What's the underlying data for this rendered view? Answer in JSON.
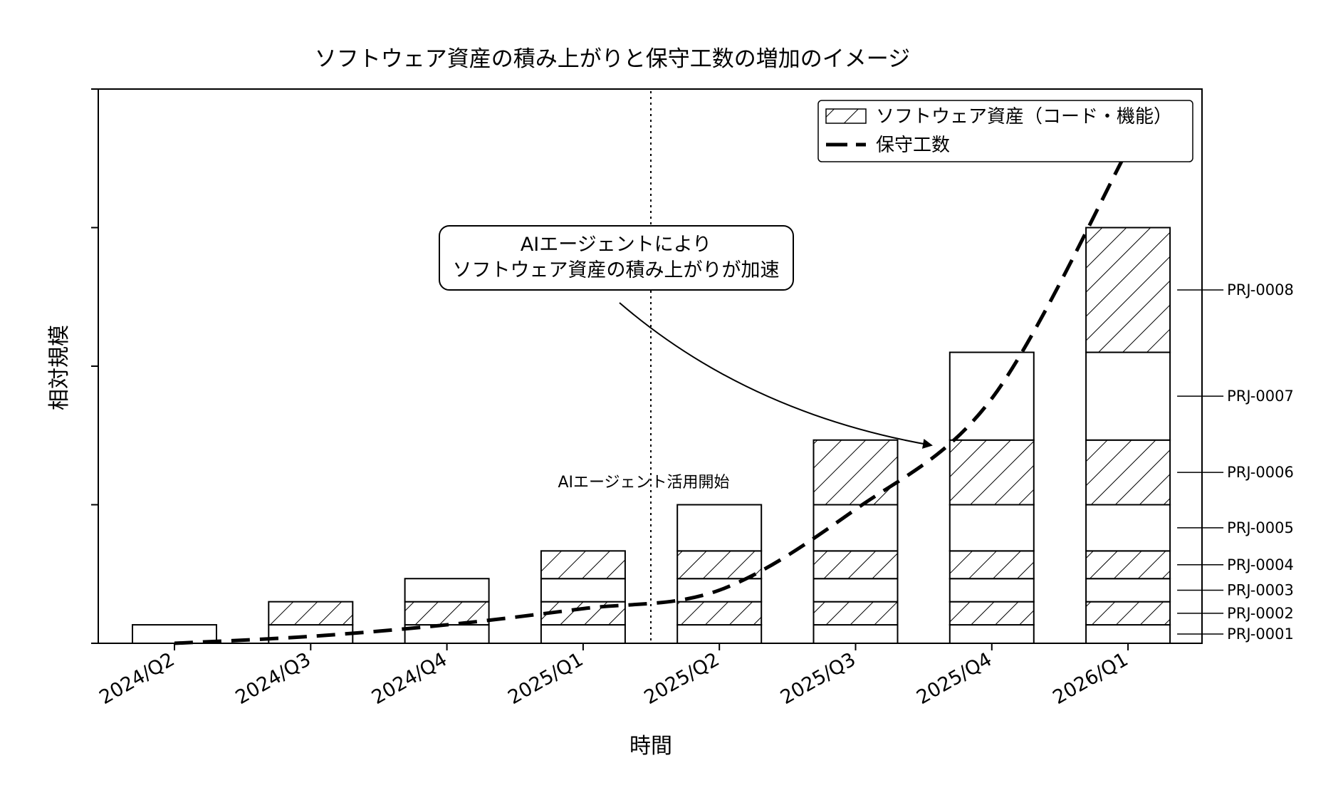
{
  "chart_data": {
    "type": "bar",
    "title": "ソフトウェア資産の積み上がりと保守工数の増加のイメージ",
    "xlabel": "時間",
    "ylabel": "相対規模",
    "categories": [
      "2024/Q2",
      "2024/Q3",
      "2024/Q4",
      "2025/Q1",
      "2025/Q2",
      "2025/Q3",
      "2025/Q4",
      "2026/Q1"
    ],
    "ylim": [
      0,
      12
    ],
    "y_tick_labels_shown": false,
    "stack_layers": [
      {
        "project": "PRJ-0001",
        "value": 0.4,
        "hatched": false,
        "first_quarter": "2024/Q2"
      },
      {
        "project": "PRJ-0002",
        "value": 0.5,
        "hatched": true,
        "first_quarter": "2024/Q3"
      },
      {
        "project": "PRJ-0003",
        "value": 0.5,
        "hatched": false,
        "first_quarter": "2024/Q4"
      },
      {
        "project": "PRJ-0004",
        "value": 0.6,
        "hatched": true,
        "first_quarter": "2025/Q1"
      },
      {
        "project": "PRJ-0005",
        "value": 1.0,
        "hatched": false,
        "first_quarter": "2025/Q2"
      },
      {
        "project": "PRJ-0006",
        "value": 1.4,
        "hatched": true,
        "first_quarter": "2025/Q3"
      },
      {
        "project": "PRJ-0007",
        "value": 1.9,
        "hatched": false,
        "first_quarter": "2025/Q4"
      },
      {
        "project": "PRJ-0008",
        "value": 2.7,
        "hatched": true,
        "first_quarter": "2026/Q1"
      }
    ],
    "series": [
      {
        "name": "ソフトウェア資産（コード・機能）",
        "type": "stacked-bar",
        "values": [
          0.4,
          0.9,
          1.4,
          2.0,
          3.0,
          4.4,
          6.3,
          9.0
        ]
      },
      {
        "name": "保守工数",
        "type": "line",
        "style": "dashed",
        "values": [
          0.0,
          0.15,
          0.4,
          0.75,
          1.15,
          2.9,
          5.3,
          10.7
        ]
      }
    ],
    "annotations": [
      {
        "text": "AIエージェント活用開始",
        "x": "2025/Q1–2025/Q2",
        "kind": "vertical-dotted-line"
      },
      {
        "text": "AIエージェントにより\nソフトウェア資産の積み上がりが加速",
        "kind": "callout-arrow",
        "target_x": "2025/Q4",
        "target_y": 4.3
      }
    ],
    "legend_position": "top-right",
    "grid": false,
    "colors": {
      "bar_fill": "#ffffff",
      "stroke": "#000000",
      "hatch": "#000000"
    }
  },
  "callout": {
    "line1": "AIエージェントにより",
    "line2": "ソフトウェア資産の積み上がりが加速"
  },
  "ai_start_label": "AIエージェント活用開始"
}
